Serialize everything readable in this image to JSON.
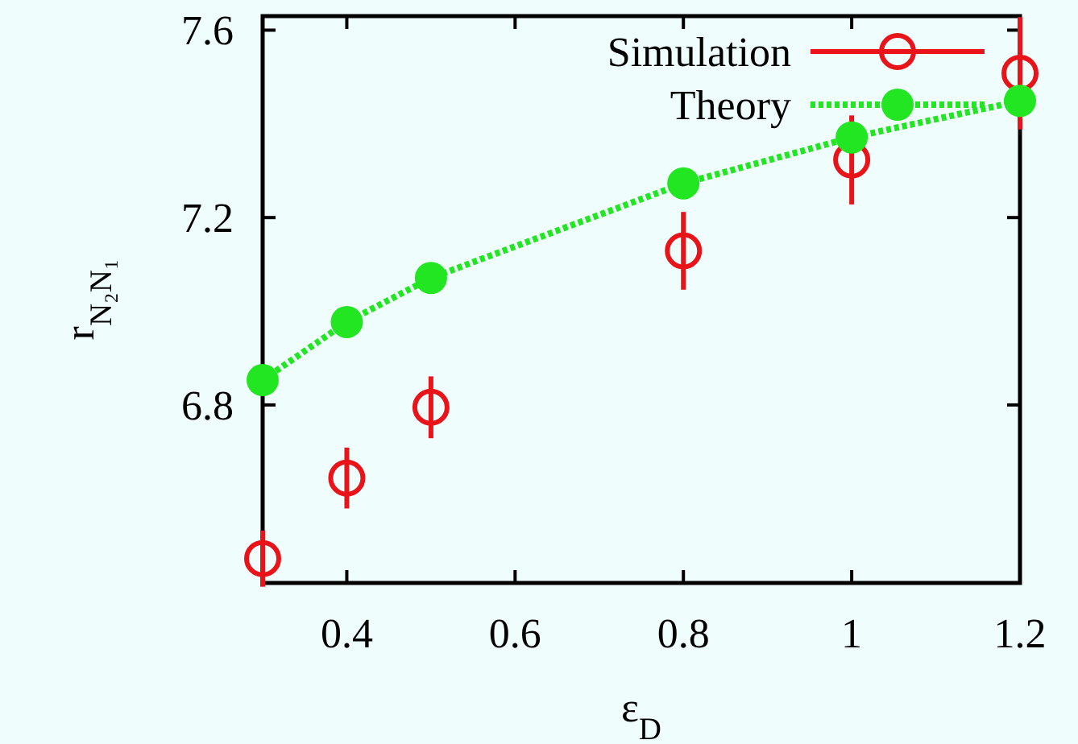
{
  "chart_data": {
    "type": "scatter",
    "xlabel": "ε$_{D}$",
    "ylabel": "r$_{N₂N₁}$",
    "x": [
      0.3,
      0.4,
      0.5,
      0.8,
      1.0,
      1.2
    ],
    "series": [
      {
        "name": "Simulation",
        "color": "#e8141a",
        "values": [
          6.472,
          6.644,
          6.795,
          7.129,
          7.323,
          7.508
        ],
        "errors": [
          0.06,
          0.065,
          0.066,
          0.083,
          0.095,
          0.12
        ],
        "marker": "circle"
      },
      {
        "name": "Theory",
        "type": "line",
        "color": "#22e622",
        "values": [
          6.853,
          6.977,
          7.071,
          7.273,
          7.371,
          7.449
        ],
        "marker": "circle",
        "line_style": "dotted"
      }
    ],
    "xlim": [
      0.3,
      1.2
    ],
    "xticks": [
      0.4,
      0.6,
      0.8,
      {
        "value": 1,
        "label": "1"
      },
      1.2
    ],
    "ylim": [
      6.42,
      7.63
    ],
    "yticks": [
      6.8,
      7.2,
      7.6
    ],
    "grid": false,
    "legend": "top right"
  }
}
